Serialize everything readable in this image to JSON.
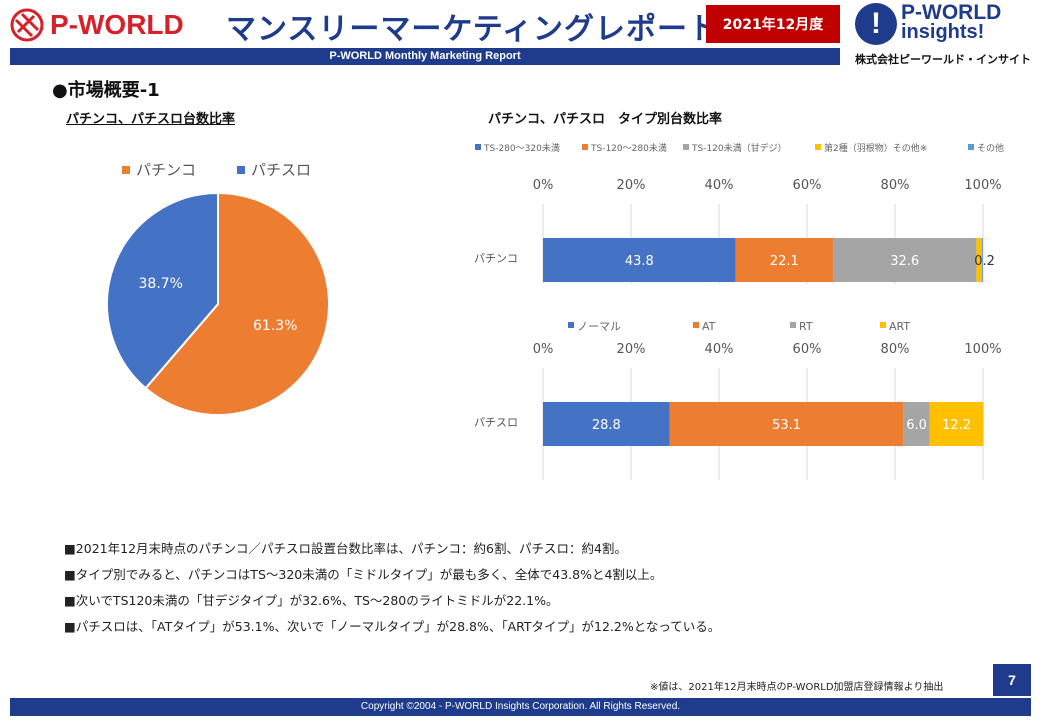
{
  "header": {
    "brand_left": "P-WORLD",
    "title": "マンスリーマーケティングレポート",
    "period": "2021年12月度",
    "brand_right_line1": "P-WORLD",
    "brand_right_line2": "insights!",
    "company": "株式会社ピーワールド・インサイト",
    "subtitle": "P-WORLD Monthly Marketing Report"
  },
  "section_title": "●市場概要-1",
  "colors": {
    "navy": "#1f3c8c",
    "red": "#c00000",
    "blue": "#4472c4",
    "orange": "#ed7d31",
    "gray": "#a5a5a5",
    "yellow": "#ffc000",
    "lightblue": "#5b9bd5"
  },
  "chart_data": [
    {
      "type": "pie",
      "title": "パチンコ、パチスロ台数比率",
      "legend_position": "top",
      "slices": [
        {
          "name": "パチンコ",
          "value": 61.3,
          "label": "61.3%",
          "color": "#ed7d31"
        },
        {
          "name": "パチスロ",
          "value": 38.7,
          "label": "38.7%",
          "color": "#4472c4"
        }
      ]
    },
    {
      "type": "bar",
      "stacked": "100%",
      "orientation": "horizontal",
      "title": "パチンコ、パチスロ　タイプ別台数比率",
      "xlim": [
        0,
        100
      ],
      "ticks": [
        "0%",
        "20%",
        "40%",
        "60%",
        "80%",
        "100%"
      ],
      "grid": true,
      "categories": [
        "パチンコ"
      ],
      "series": [
        {
          "name": "TS-280～320未満",
          "values": [
            43.8
          ],
          "label": "43.8",
          "color": "#4472c4"
        },
        {
          "name": "TS-120～280未満",
          "values": [
            22.1
          ],
          "label": "22.1",
          "color": "#ed7d31"
        },
        {
          "name": "TS-120未満（甘デジ）",
          "values": [
            32.6
          ],
          "label": "32.6",
          "color": "#a5a5a5"
        },
        {
          "name": "第2種（羽根物）その他※",
          "values": [
            1.3
          ],
          "label": "",
          "color": "#ffc000"
        },
        {
          "name": "その他",
          "values": [
            0.2
          ],
          "label": "0.2",
          "color": "#5b9bd5"
        }
      ]
    },
    {
      "type": "bar",
      "stacked": "100%",
      "orientation": "horizontal",
      "xlim": [
        0,
        100
      ],
      "ticks": [
        "0%",
        "20%",
        "40%",
        "60%",
        "80%",
        "100%"
      ],
      "grid": true,
      "categories": [
        "パチスロ"
      ],
      "series": [
        {
          "name": "ノーマル",
          "values": [
            28.8
          ],
          "label": "28.8",
          "color": "#4472c4"
        },
        {
          "name": "AT",
          "values": [
            53.1
          ],
          "label": "53.1",
          "color": "#ed7d31"
        },
        {
          "name": "RT",
          "values": [
            6.0
          ],
          "label": "6.0",
          "color": "#a5a5a5"
        },
        {
          "name": "ART",
          "values": [
            12.2
          ],
          "label": "12.2",
          "color": "#ffc000"
        }
      ]
    }
  ],
  "bullets": [
    "■2021年12月末時点のパチンコ／パチスロ設置台数比率は、パチンコ：約6割、パチスロ：約4割。",
    "■タイプ別でみると、パチンコはTS～320未満の「ミドルタイプ」が最も多く、全体で43.8%と4割以上。",
    "■次いでTS120未満の「甘デジタイプ」が32.6%、TS～280のライトミドルが22.1%。",
    "■パチスロは、「ATタイプ」が53.1%、次いで「ノーマルタイプ」が28.8%、「ARTタイプ」が12.2%となっている。"
  ],
  "footnote": "※値は、2021年12月末時点のP-WORLD加盟店登録情報より抽出",
  "page_number": "7",
  "copyright": "Copyright ©2004 -  P-WORLD Insights Corporation. All Rights Reserved."
}
